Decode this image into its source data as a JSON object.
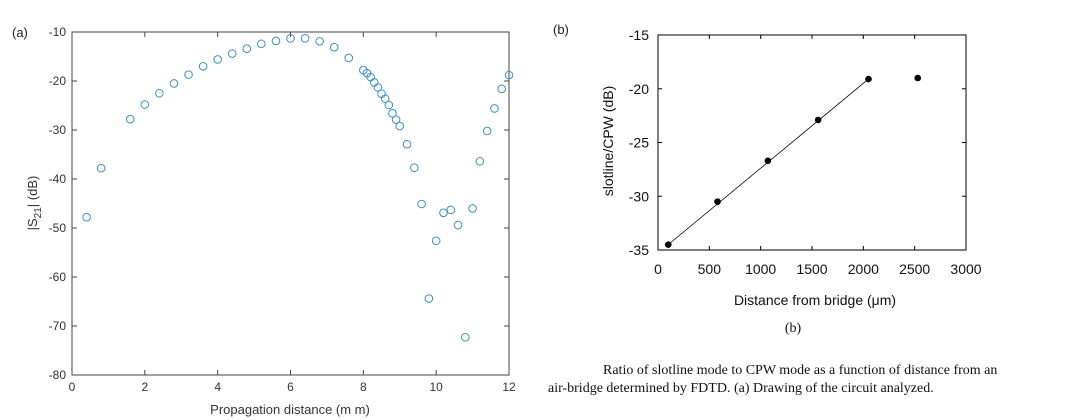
{
  "panel_a_label": "(a)",
  "panel_b_label": "(b)",
  "panel_b_bottom_label": "(b)",
  "caption": {
    "line1": "Ratio of slotline mode to CPW mode as a function of distance from an",
    "line2": "air-bridge determined by FDTD. (a) Drawing of the circuit analyzed."
  },
  "colors": {
    "series_a": "#3a8fc4",
    "series_b": "#000000",
    "axes": "#444444"
  },
  "chart_data": [
    {
      "type": "scatter",
      "title": "",
      "xlabel": "Propagation distance (m m)",
      "ylabel_main": "|S",
      "ylabel_sub": "21",
      "ylabel_end": "| (dB)",
      "xlim": [
        0,
        12
      ],
      "ylim": [
        -80,
        -10
      ],
      "xticks": [
        0,
        2,
        4,
        6,
        8,
        10,
        12
      ],
      "yticks": [
        -10,
        -20,
        -30,
        -40,
        -50,
        -60,
        -70,
        -80
      ],
      "marker": "open-circle",
      "x": [
        0.4,
        0.8,
        1.6,
        2.0,
        2.4,
        2.8,
        3.2,
        3.6,
        4.0,
        4.4,
        4.8,
        5.2,
        5.6,
        6.0,
        6.4,
        6.8,
        7.2,
        7.6,
        8.0,
        8.1,
        8.2,
        8.3,
        8.4,
        8.5,
        8.6,
        8.7,
        8.8,
        8.9,
        9.0,
        9.2,
        9.4,
        9.6,
        9.8,
        10.0,
        10.2,
        10.4,
        10.6,
        10.8,
        11.0,
        11.2,
        11.4,
        11.6,
        11.8,
        12.0
      ],
      "y": [
        -47.8,
        -37.8,
        -27.8,
        -24.8,
        -22.5,
        -20.5,
        -18.7,
        -17.0,
        -15.6,
        -14.4,
        -13.4,
        -12.4,
        -11.8,
        -11.3,
        -11.3,
        -11.9,
        -13.1,
        -15.3,
        -17.8,
        -18.4,
        -19.2,
        -20.3,
        -21.3,
        -22.6,
        -23.6,
        -24.9,
        -26.6,
        -27.9,
        -29.2,
        -32.9,
        -37.7,
        -45.1,
        -64.4,
        -52.6,
        -46.9,
        -46.3,
        -49.4,
        -72.3,
        -46.0,
        -36.4,
        -30.2,
        -25.6,
        -21.6,
        -18.8
      ]
    },
    {
      "type": "line",
      "title": "",
      "xlabel": "Distance from bridge (μm)",
      "ylabel": "slotline/CPW (dB)",
      "xlim": [
        0,
        3000
      ],
      "ylim": [
        -35,
        -15
      ],
      "xticks": [
        0,
        500,
        1000,
        1500,
        2000,
        2500,
        3000
      ],
      "yticks": [
        -15,
        -20,
        -25,
        -30,
        -35
      ],
      "marker": "filled-circle",
      "x": [
        100,
        580,
        1070,
        1560,
        2050,
        2530
      ],
      "y": [
        -34.5,
        -30.5,
        -26.7,
        -22.9,
        -19.1,
        -19.0
      ],
      "line_x": [
        100,
        2050
      ],
      "line_y": [
        -34.5,
        -19.1
      ]
    }
  ]
}
